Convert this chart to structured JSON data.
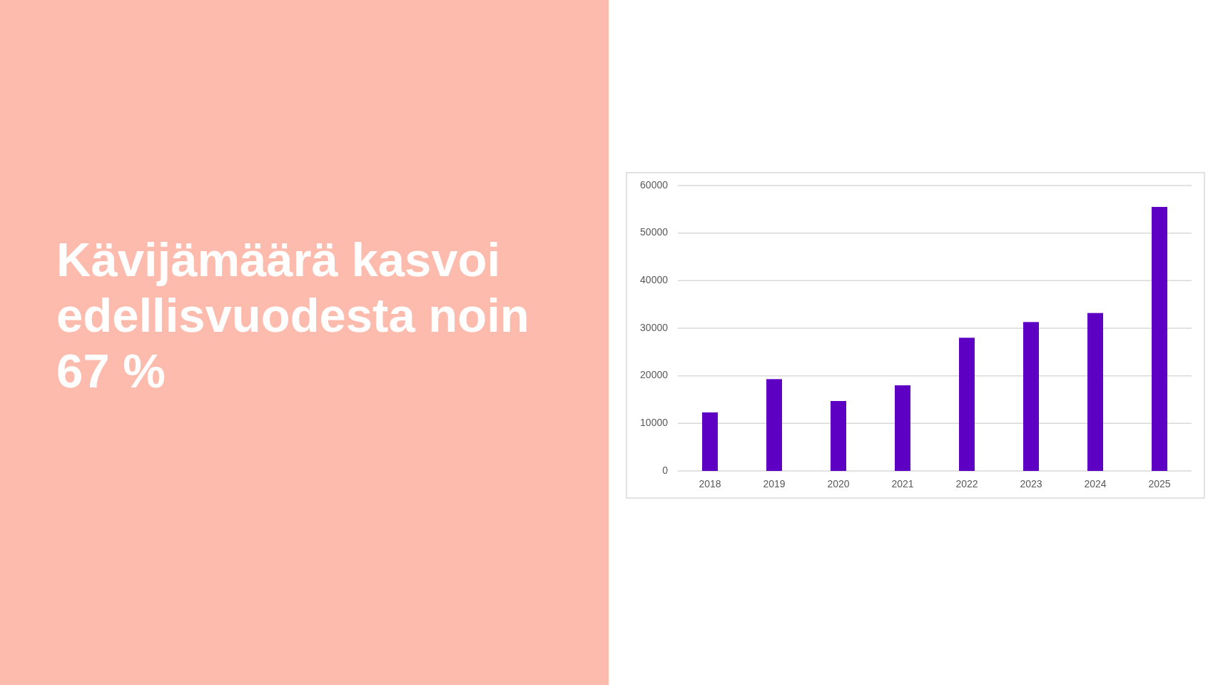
{
  "chart_data": {
    "type": "bar",
    "title": "Kävijämäärä kasvoi edellisvuodesta noin 67 %",
    "categories": [
      "2018",
      "2019",
      "2020",
      "2021",
      "2022",
      "2023",
      "2024",
      "2025"
    ],
    "values": [
      12300,
      19300,
      14700,
      18000,
      28000,
      31300,
      33200,
      55500
    ],
    "color": "#5e00c4",
    "ylim": [
      0,
      60000
    ],
    "yticks": [
      0,
      10000,
      20000,
      30000,
      40000,
      50000,
      60000
    ],
    "grid": "y"
  }
}
